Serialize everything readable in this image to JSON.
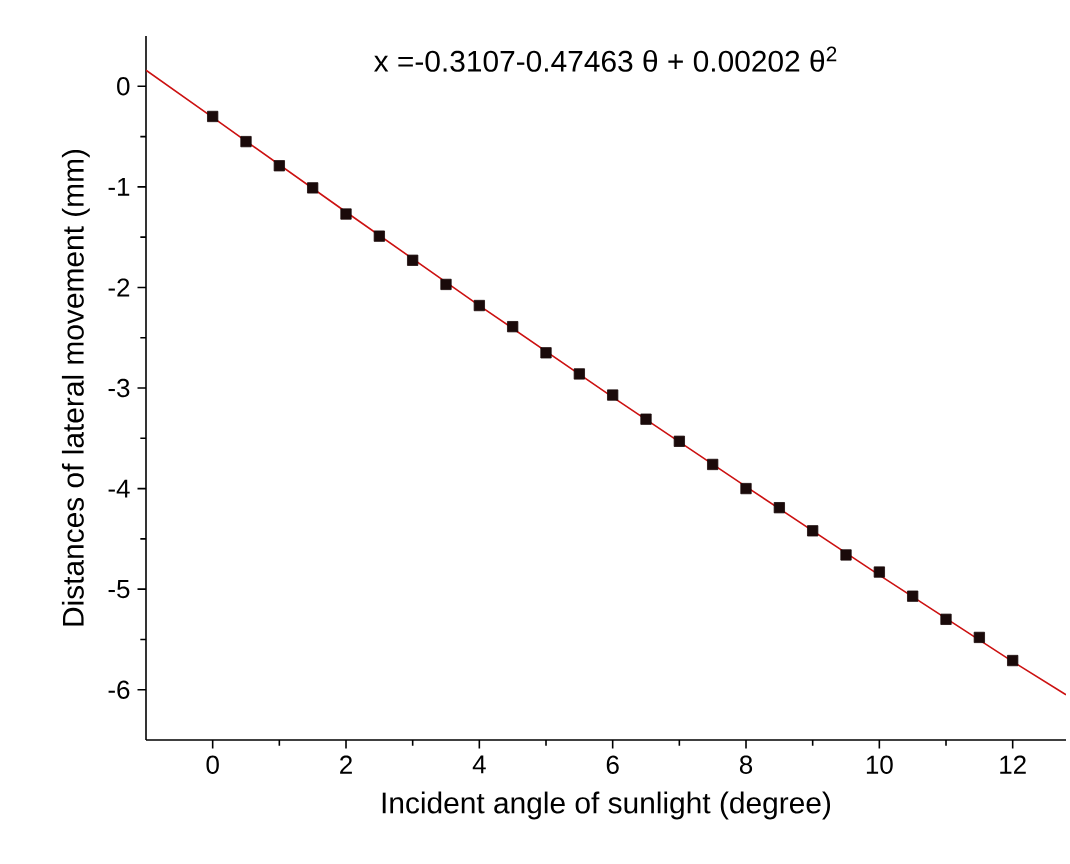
{
  "chart_data": {
    "type": "scatter",
    "title": "x =-0.3107-0.47463 θ + 0.00202 θ$^{2}$",
    "xlabel": "Incident angle of sunlight (degree)",
    "ylabel": "Distances of lateral movement (mm)",
    "xlim": [
      -1,
      12.8
    ],
    "ylim": [
      -6.5,
      0.5
    ],
    "xticks": [
      0,
      2,
      4,
      6,
      8,
      10,
      12
    ],
    "yticks": [
      -6,
      -5,
      -4,
      -3,
      -2,
      -1,
      0
    ],
    "grid": false,
    "marker": "square",
    "series": [
      {
        "color": "#1a0a0a",
        "x": [
          0,
          0.5,
          1,
          1.5,
          2,
          2.5,
          3,
          3.5,
          4,
          4.5,
          5,
          5.5,
          6,
          6.5,
          7,
          7.5,
          8,
          8.5,
          9,
          9.5,
          10,
          10.5,
          11,
          11.5,
          12
        ],
        "values": [
          -0.3,
          -0.55,
          -0.79,
          -1.01,
          -1.27,
          -1.49,
          -1.73,
          -1.97,
          -2.18,
          -2.39,
          -2.65,
          -2.86,
          -3.07,
          -3.31,
          -3.53,
          -3.76,
          -4.0,
          -4.19,
          -4.42,
          -4.66,
          -4.83,
          -5.07,
          -5.3,
          -5.48,
          -5.71
        ]
      },
      {
        "type": "line",
        "color": "#cc1111",
        "marker": "none",
        "line_style": "solid",
        "x": [
          -1,
          0,
          2,
          4,
          6,
          8,
          10,
          12,
          12.8
        ],
        "values": [
          0.16,
          -0.31,
          -1.25,
          -2.18,
          -3.09,
          -3.98,
          -4.86,
          -5.72,
          -6.05
        ]
      }
    ]
  }
}
